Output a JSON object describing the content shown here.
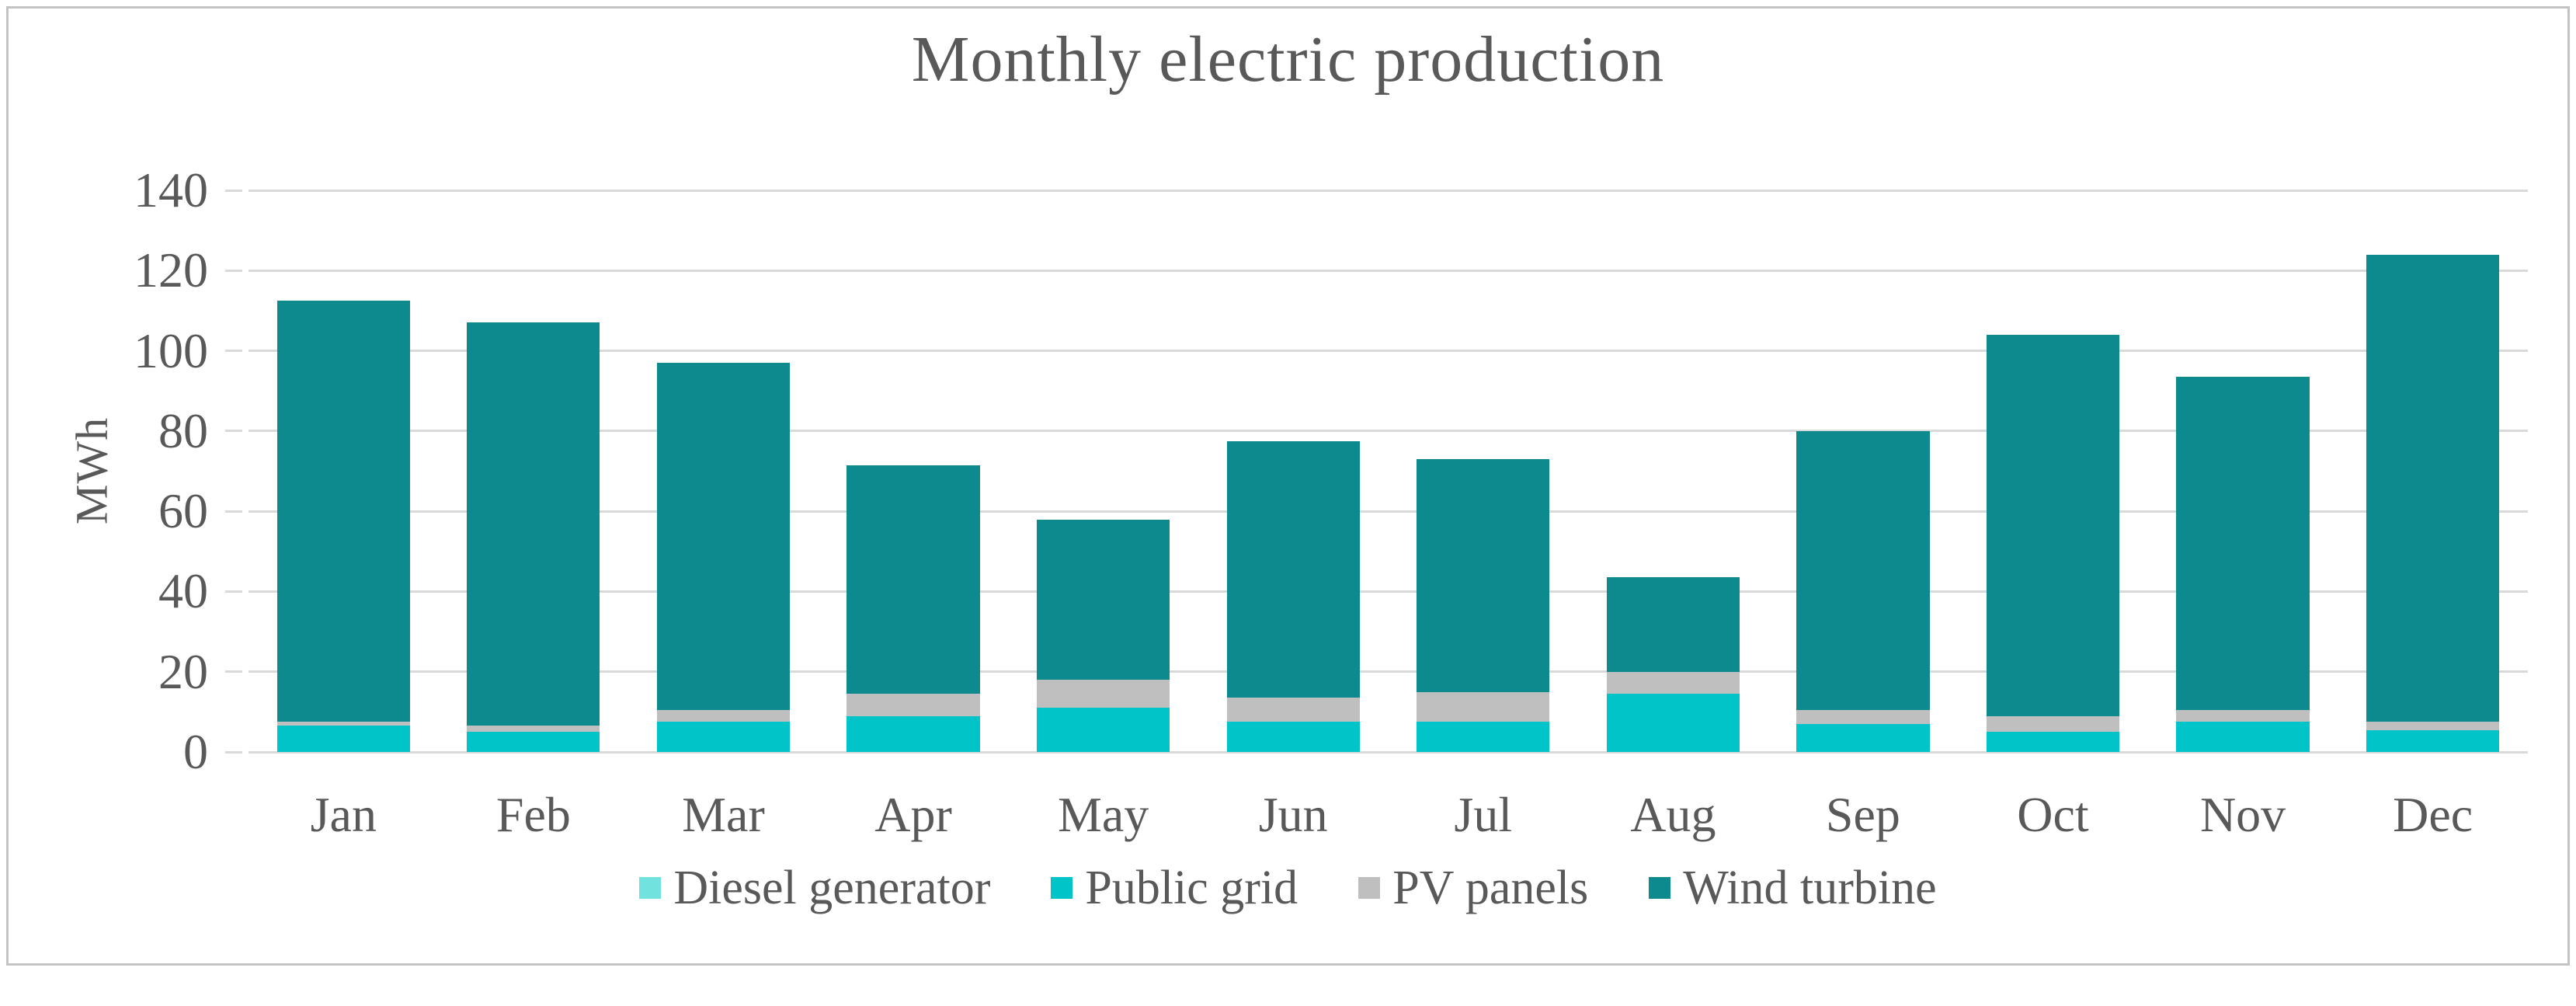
{
  "figure": {
    "title": "Monthly electric production",
    "border_color": "#c3c3c3",
    "background": "#ffffff",
    "text_color": "#595959",
    "gridline_color": "#d9d9d9"
  },
  "chart_data": {
    "type": "bar",
    "stacked": true,
    "title": "Monthly electric production",
    "xlabel": "",
    "ylabel": "MWh",
    "ymin": 0,
    "ymax": 140,
    "yticks": [
      0,
      20,
      40,
      60,
      80,
      100,
      120,
      140
    ],
    "grid": true,
    "legend_position": "bottom",
    "categories": [
      "Jan",
      "Feb",
      "Mar",
      "Apr",
      "May",
      "Jun",
      "Jul",
      "Aug",
      "Sep",
      "Oct",
      "Nov",
      "Dec"
    ],
    "series": [
      {
        "name": "Diesel generator",
        "color": "#72e2df",
        "values": [
          0,
          0,
          0,
          0,
          0,
          0,
          0,
          0,
          0,
          0,
          0,
          0
        ]
      },
      {
        "name": "Public grid",
        "color": "#00c4c8",
        "values": [
          6.5,
          5,
          7.5,
          9,
          11,
          7.5,
          7.5,
          14.5,
          7,
          5,
          7.5,
          5.5
        ]
      },
      {
        "name": "PV panels",
        "color": "#bfbfbf",
        "values": [
          1,
          1.5,
          3,
          5.5,
          7,
          6,
          7.5,
          5.5,
          3.5,
          4,
          3,
          2
        ]
      },
      {
        "name": "Wind turbine",
        "color": "#0d8a8d",
        "values": [
          105,
          100.5,
          86.5,
          57,
          40,
          64,
          58,
          23.5,
          69.5,
          95,
          83,
          116.5
        ]
      }
    ],
    "totals": [
      112.5,
      107,
      97,
      71.5,
      58,
      77.5,
      73,
      43.5,
      80,
      104,
      93.5,
      124
    ]
  }
}
